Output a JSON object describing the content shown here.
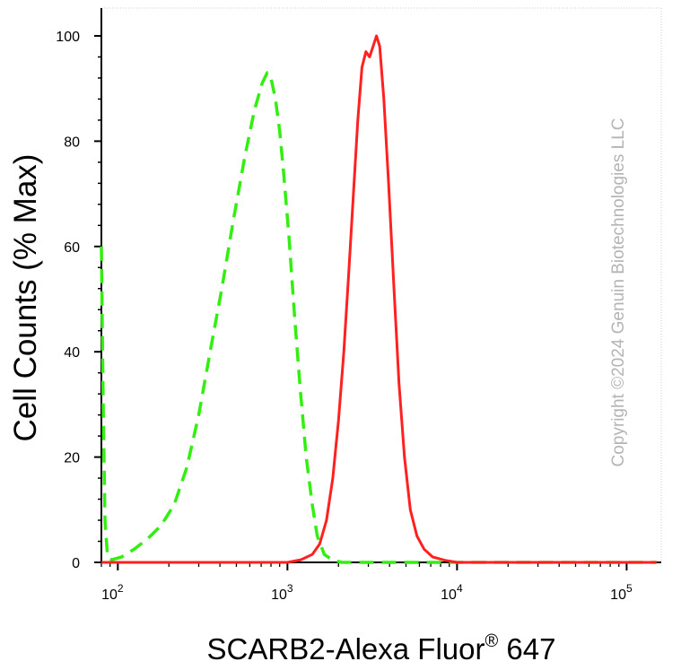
{
  "chart_data": {
    "type": "line",
    "x_scale": "log",
    "xlim": [
      80,
      160000
    ],
    "ylim": [
      0,
      100
    ],
    "xlabel": "SCARB2-Alexa Fluor",
    "xlabel_superscript": "®",
    "xlabel_suffix": " 647",
    "ylabel": "Cell Counts (% Max)",
    "x_ticks": [
      {
        "base": "10",
        "exp": "2",
        "value": 100
      },
      {
        "base": "10",
        "exp": "3",
        "value": 1000
      },
      {
        "base": "10",
        "exp": "4",
        "value": 10000
      },
      {
        "base": "10",
        "exp": "5",
        "value": 100000
      }
    ],
    "y_ticks": [
      {
        "label": "0",
        "value": 0
      },
      {
        "label": "20",
        "value": 20
      },
      {
        "label": "40",
        "value": 40
      },
      {
        "label": "60",
        "value": 60
      },
      {
        "label": "80",
        "value": 80
      },
      {
        "label": "100",
        "value": 100
      }
    ],
    "grid": false,
    "legend": "none",
    "watermark": "Copyright ©2024 Genuin Biotechnologies LLC",
    "series": [
      {
        "style": "dashed",
        "color": "#33ee11",
        "points": [
          [
            80,
            60
          ],
          [
            82,
            30
          ],
          [
            84,
            8
          ],
          [
            87,
            1
          ],
          [
            92,
            0.5
          ],
          [
            105,
            1
          ],
          [
            125,
            2.5
          ],
          [
            150,
            4.5
          ],
          [
            180,
            7
          ],
          [
            215,
            11
          ],
          [
            255,
            18
          ],
          [
            300,
            28
          ],
          [
            350,
            40
          ],
          [
            410,
            52
          ],
          [
            480,
            65
          ],
          [
            560,
            77
          ],
          [
            640,
            86
          ],
          [
            710,
            91
          ],
          [
            760,
            93
          ],
          [
            800,
            92
          ],
          [
            850,
            88
          ],
          [
            900,
            82
          ],
          [
            950,
            74
          ],
          [
            1020,
            62
          ],
          [
            1100,
            47
          ],
          [
            1190,
            33
          ],
          [
            1290,
            20
          ],
          [
            1400,
            11
          ],
          [
            1500,
            5
          ],
          [
            1650,
            1.5
          ],
          [
            1850,
            0.4
          ],
          [
            2100,
            0
          ],
          [
            3000,
            0
          ],
          [
            10000,
            0
          ],
          [
            50000,
            0
          ],
          [
            150000,
            0
          ]
        ]
      },
      {
        "style": "solid",
        "color": "#ff2020",
        "points": [
          [
            80,
            0
          ],
          [
            1000,
            0
          ],
          [
            1200,
            0.5
          ],
          [
            1400,
            1.5
          ],
          [
            1550,
            3.5
          ],
          [
            1700,
            8
          ],
          [
            1850,
            16
          ],
          [
            2000,
            27
          ],
          [
            2150,
            40
          ],
          [
            2300,
            55
          ],
          [
            2450,
            70
          ],
          [
            2600,
            84
          ],
          [
            2750,
            94
          ],
          [
            2900,
            97
          ],
          [
            3050,
            96
          ],
          [
            3200,
            98
          ],
          [
            3350,
            100
          ],
          [
            3500,
            98
          ],
          [
            3700,
            88
          ],
          [
            3950,
            72
          ],
          [
            4250,
            52
          ],
          [
            4550,
            34
          ],
          [
            4900,
            20
          ],
          [
            5300,
            10
          ],
          [
            5800,
            5
          ],
          [
            6400,
            2.5
          ],
          [
            7200,
            1
          ],
          [
            8500,
            0.4
          ],
          [
            10000,
            0
          ],
          [
            20000,
            0
          ],
          [
            50000,
            0
          ],
          [
            150000,
            0
          ]
        ]
      }
    ]
  }
}
